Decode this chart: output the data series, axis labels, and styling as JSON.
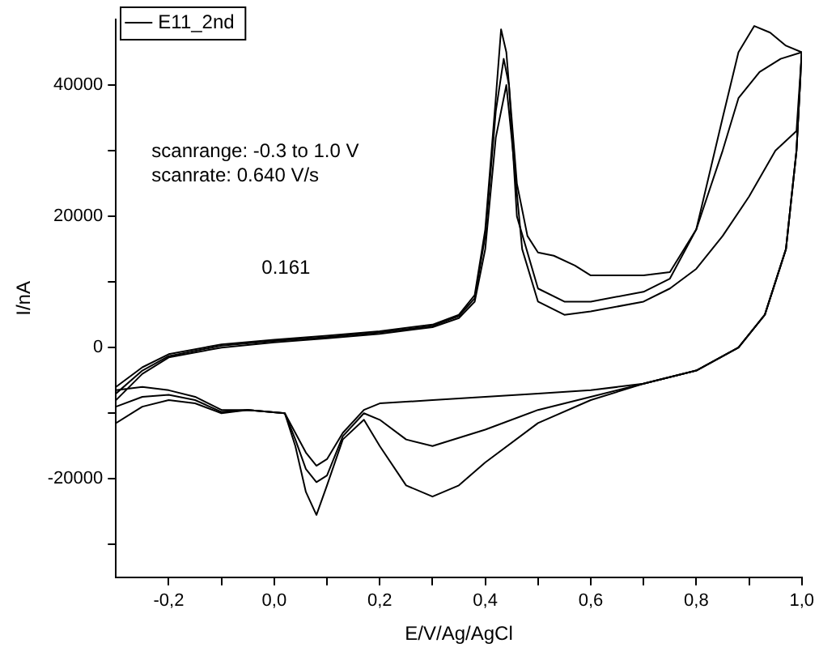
{
  "chart_data": {
    "type": "line",
    "xlabel": "E/V/Ag/AgCl",
    "ylabel": "I/nA",
    "xlim": [
      -0.3,
      1.0
    ],
    "ylim": [
      -35000,
      50000
    ],
    "xticks": [
      {
        "value": -0.2,
        "label": "-0,2"
      },
      {
        "value": -0.1,
        "label": null
      },
      {
        "value": 0,
        "label": "0,0"
      },
      {
        "value": 0.1,
        "label": null
      },
      {
        "value": 0.2,
        "label": "0,2"
      },
      {
        "value": 0.3,
        "label": null
      },
      {
        "value": 0.4,
        "label": "0,4"
      },
      {
        "value": 0.5,
        "label": null
      },
      {
        "value": 0.6,
        "label": "0,6"
      },
      {
        "value": 0.7,
        "label": null
      },
      {
        "value": 0.8,
        "label": "0,8"
      },
      {
        "value": 0.9,
        "label": null
      },
      {
        "value": 1.0,
        "label": "1,0"
      }
    ],
    "yticks": [
      {
        "value": -30000,
        "label": null
      },
      -20000,
      {
        "value": -10000,
        "label": null
      },
      0,
      {
        "value": 10000,
        "label": null
      },
      20000,
      {
        "value": 30000,
        "label": null
      },
      40000
    ],
    "grid": false,
    "legend": "top left",
    "marker": "none",
    "line_style": "solid",
    "annotations": [
      "scanrange: -0.3 to 1.0 V",
      "scanrate: 0.640 V/s",
      "0.161"
    ],
    "series": [
      {
        "name": "E11_2nd",
        "color": "#000000",
        "x": [
          -0.3,
          -0.25,
          -0.2,
          -0.1,
          0.0,
          0.1,
          0.2,
          0.3,
          0.35,
          0.38,
          0.4,
          0.42,
          0.43,
          0.44,
          0.46,
          0.48,
          0.5,
          0.53,
          0.57,
          0.6,
          0.7,
          0.75,
          0.8,
          0.85,
          0.88,
          0.91,
          0.94,
          0.97,
          1.0,
          0.99,
          0.97,
          0.93,
          0.88,
          0.8,
          0.7,
          0.6,
          0.5,
          0.4,
          0.35,
          0.3,
          0.25,
          0.2,
          0.17,
          0.13,
          0.1,
          0.08,
          0.06,
          0.04,
          0.02,
          -0.05,
          -0.1,
          -0.15,
          -0.2,
          -0.25,
          -0.3
        ],
        "values": [
          -6000,
          -3000,
          -1000,
          500,
          1200,
          1800,
          2500,
          3500,
          5000,
          8000,
          18000,
          38000,
          48500,
          45000,
          25000,
          17000,
          14500,
          14000,
          12500,
          11000,
          11000,
          11500,
          18000,
          35000,
          45000,
          49000,
          48000,
          46000,
          45000,
          30000,
          15000,
          5000,
          0,
          -3500,
          -5500,
          -8000,
          -11500,
          -17500,
          -21000,
          -22700,
          -21000,
          -15000,
          -11000,
          -14000,
          -21000,
          -25500,
          -22000,
          -15000,
          -10000,
          -9500,
          -10000,
          -8500,
          -8000,
          -9000,
          -11500
        ]
      },
      {
        "color": "#000000",
        "x": [
          -0.3,
          -0.25,
          -0.2,
          -0.1,
          0.0,
          0.1,
          0.2,
          0.3,
          0.35,
          0.38,
          0.4,
          0.42,
          0.435,
          0.445,
          0.46,
          0.5,
          0.55,
          0.6,
          0.7,
          0.75,
          0.8,
          0.85,
          0.88,
          0.92,
          0.96,
          1.0,
          0.99,
          0.97,
          0.93,
          0.88,
          0.8,
          0.7,
          0.6,
          0.5,
          0.4,
          0.3,
          0.25,
          0.2,
          0.17,
          0.13,
          0.1,
          0.08,
          0.06,
          0.04,
          0.02,
          -0.05,
          -0.1,
          -0.15,
          -0.2,
          -0.25,
          -0.3
        ],
        "values": [
          -7000,
          -3500,
          -1300,
          300,
          1000,
          1600,
          2300,
          3300,
          4800,
          7500,
          17000,
          36000,
          44000,
          40000,
          20000,
          9000,
          7000,
          7000,
          8500,
          10500,
          18000,
          30000,
          38000,
          42000,
          44000,
          45000,
          30000,
          15000,
          5000,
          0,
          -3500,
          -5500,
          -7500,
          -9500,
          -12500,
          -15000,
          -14000,
          -11000,
          -10000,
          -13500,
          -19500,
          -20500,
          -18500,
          -14000,
          -10000,
          -9500,
          -9800,
          -8000,
          -7200,
          -7500,
          -9000
        ]
      },
      {
        "color": "#000000",
        "x": [
          -0.3,
          -0.25,
          -0.2,
          -0.1,
          0.0,
          0.1,
          0.2,
          0.3,
          0.35,
          0.38,
          0.4,
          0.42,
          0.44,
          0.45,
          0.47,
          0.5,
          0.55,
          0.6,
          0.7,
          0.75,
          0.8,
          0.85,
          0.9,
          0.95,
          0.99,
          1.0,
          0.99,
          0.97,
          0.93,
          0.88,
          0.8,
          0.7,
          0.6,
          0.5,
          0.4,
          0.3,
          0.2,
          0.17,
          0.13,
          0.1,
          0.08,
          0.06,
          0.04,
          0.02,
          -0.05,
          -0.1,
          -0.15,
          -0.2,
          -0.25,
          -0.3
        ],
        "values": [
          -8000,
          -4000,
          -1500,
          0,
          800,
          1400,
          2100,
          3100,
          4500,
          7000,
          15000,
          32000,
          40000,
          32000,
          15000,
          7000,
          5000,
          5500,
          7000,
          9000,
          12000,
          17000,
          23000,
          30000,
          33000,
          45000,
          30000,
          15000,
          5000,
          0,
          -3500,
          -5500,
          -6500,
          -7000,
          -7500,
          -8000,
          -8500,
          -9500,
          -13000,
          -17000,
          -18000,
          -16000,
          -13000,
          -10000,
          -9500,
          -9500,
          -7500,
          -6500,
          -6000,
          -6500
        ]
      }
    ]
  }
}
